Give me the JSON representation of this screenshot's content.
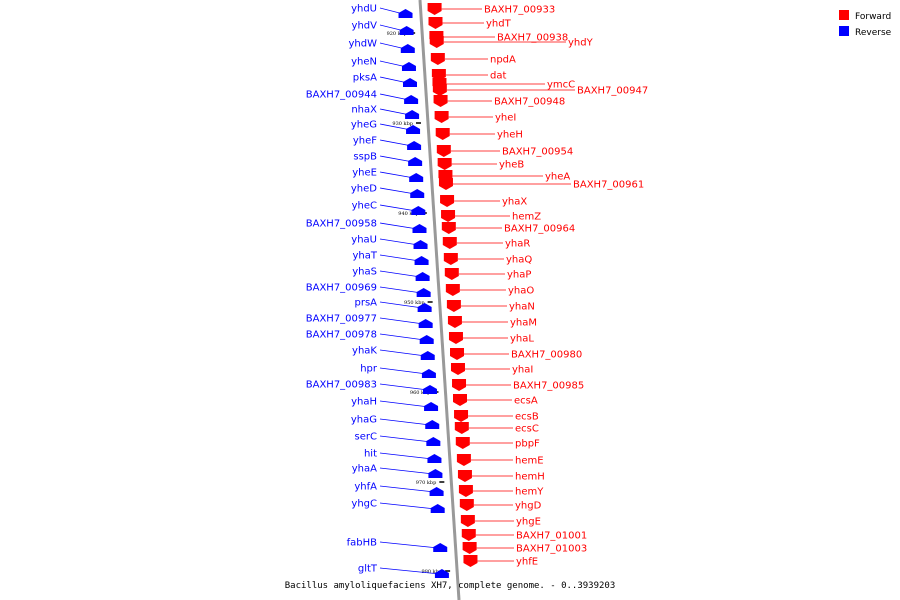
{
  "caption": "Bacillus amyloliquefaciens XH7, complete genome. - 0..3939203",
  "legend": [
    {
      "label": "Forward",
      "color": "#ff0000"
    },
    {
      "label": "Reverse",
      "color": "#0000ff"
    }
  ],
  "ticks": [
    "920 kbp",
    "930 kbp",
    "940 kbp",
    "950 kbp",
    "960 kbp",
    "970 kbp",
    "980 kbp"
  ],
  "reverse_genes": [
    "yhdU",
    "yhdV",
    "yhdW",
    "yheN",
    "pksA",
    "BAXH7_00944",
    "nhaX",
    "yheG",
    "yheF",
    "sspB",
    "yheE",
    "yheD",
    "yheC",
    "BAXH7_00958",
    "yhaU",
    "yhaT",
    "yhaS",
    "BAXH7_00969",
    "prsA",
    "BAXH7_00977",
    "BAXH7_00978",
    "yhaK",
    "hpr",
    "BAXH7_00983",
    "yhaH",
    "yhaG",
    "serC",
    "hit",
    "yhaA",
    "yhfA",
    "yhgC",
    "fabHB",
    "gltT"
  ],
  "forward_genes": [
    "BAXH7_00933",
    "yhdT",
    "BAXH7_00938",
    "yhdY",
    "npdA",
    "dat",
    "ymcC",
    "BAXH7_00947",
    "BAXH7_00948",
    "yheI",
    "yheH",
    "BAXH7_00954",
    "yheB",
    "yheA",
    "BAXH7_00961",
    "yhaX",
    "hemZ",
    "BAXH7_00964",
    "yhaR",
    "yhaQ",
    "yhaP",
    "yhaO",
    "yhaN",
    "yhaM",
    "yhaL",
    "BAXH7_00980",
    "yhaI",
    "BAXH7_00985",
    "ecsA",
    "ecsB",
    "ecsC",
    "pbpF",
    "hemE",
    "hemH",
    "hemY",
    "yhgD",
    "yhgE",
    "BAXH7_01001",
    "BAXH7_01003",
    "yhfE"
  ],
  "colors": {
    "forward": "#ff0000",
    "reverse": "#0000ff",
    "axis": "#999999"
  }
}
